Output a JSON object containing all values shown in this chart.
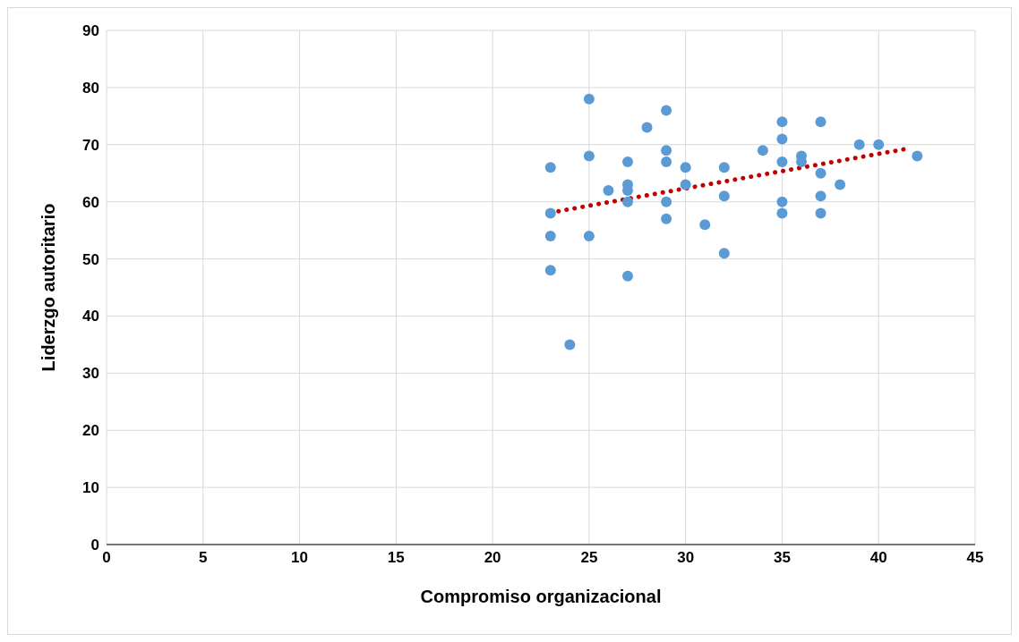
{
  "chart_data": {
    "type": "scatter",
    "xlabel": "Compromiso organizacional",
    "ylabel": "Liderzgo autoritario",
    "xlim": [
      0,
      45
    ],
    "xticks": [
      0,
      5,
      10,
      15,
      20,
      25,
      30,
      35,
      40,
      45
    ],
    "ylim": [
      0,
      90
    ],
    "yticks": [
      0,
      10,
      20,
      30,
      40,
      50,
      60,
      70,
      80,
      90
    ],
    "grid": true,
    "marker": "circle",
    "series": [
      {
        "color": "#5b9bd5",
        "x": [
          23,
          23,
          23,
          23,
          24,
          25,
          25,
          25,
          26,
          27,
          27,
          27,
          27,
          27,
          28,
          29,
          29,
          29,
          29,
          29,
          30,
          30,
          31,
          32,
          32,
          32,
          34,
          35,
          35,
          35,
          35,
          35,
          36,
          36,
          37,
          37,
          37,
          37,
          38,
          39,
          40,
          42
        ],
        "values": [
          66,
          58,
          54,
          48,
          35,
          78,
          68,
          54,
          62,
          67,
          63,
          62,
          60,
          47,
          73,
          76,
          69,
          67,
          60,
          57,
          66,
          63,
          56,
          66,
          61,
          51,
          69,
          74,
          71,
          67,
          60,
          58,
          68,
          67,
          74,
          65,
          61,
          58,
          63,
          70,
          70,
          68
        ]
      },
      {
        "type": "line",
        "color": "#c00000",
        "line_style": "dotted",
        "marker": "none",
        "x": [
          23,
          41.5
        ],
        "values": [
          58.1,
          69.3
        ]
      }
    ]
  }
}
